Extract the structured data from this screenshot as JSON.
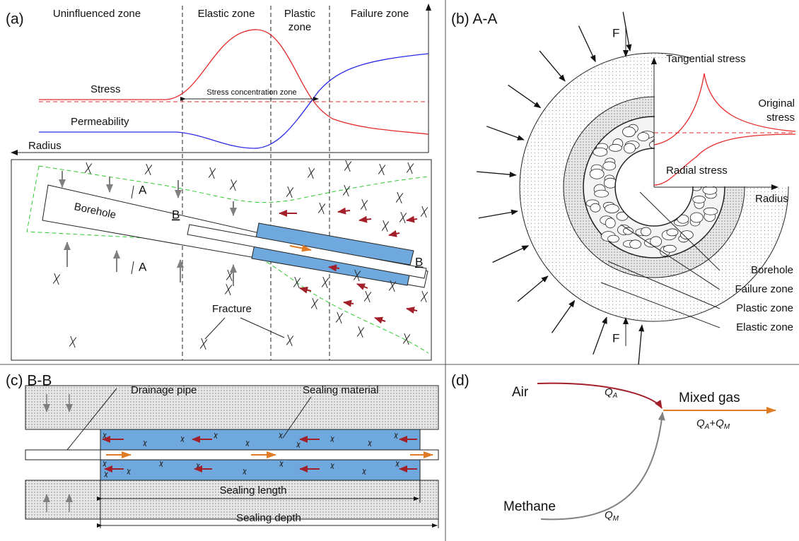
{
  "panel_a": {
    "label": "(a)",
    "zones": {
      "uninfluenced": "Uninfluenced zone",
      "elastic": "Elastic zone",
      "plastic": [
        "Plastic",
        "zone"
      ],
      "failure": "Failure zone"
    },
    "stress": "Stress",
    "stress_concentration": "Stress concentration zone",
    "permeability": "Permeability",
    "axis": "Radius",
    "section_a": [
      "A",
      "A"
    ],
    "borehole": "Borehole",
    "section_b": [
      "B",
      "B"
    ],
    "fracture": "Fracture"
  },
  "panel_b": {
    "label": "(b) A-A",
    "force": [
      "F",
      "F"
    ],
    "tangential": "Tangential stress",
    "original": [
      "Original",
      "stress"
    ],
    "radial": "Radial stress",
    "axis": "Radius",
    "zones": [
      "Borehole",
      "Failure zone",
      "Plastic zone",
      "Elastic zone"
    ]
  },
  "panel_c": {
    "label": "(c) B-B",
    "pipe": "Drainage pipe",
    "material": "Sealing material",
    "length": "Sealing length",
    "depth": "Sealing depth"
  },
  "panel_d": {
    "label": "(d)",
    "air": "Air",
    "q_air": [
      "Q",
      "A"
    ],
    "mixed": "Mixed gas",
    "q_mixed": [
      "Q",
      "A",
      "+",
      "Q",
      "M"
    ],
    "methane": "Methane",
    "q_methane": [
      "Q",
      "M"
    ]
  }
}
